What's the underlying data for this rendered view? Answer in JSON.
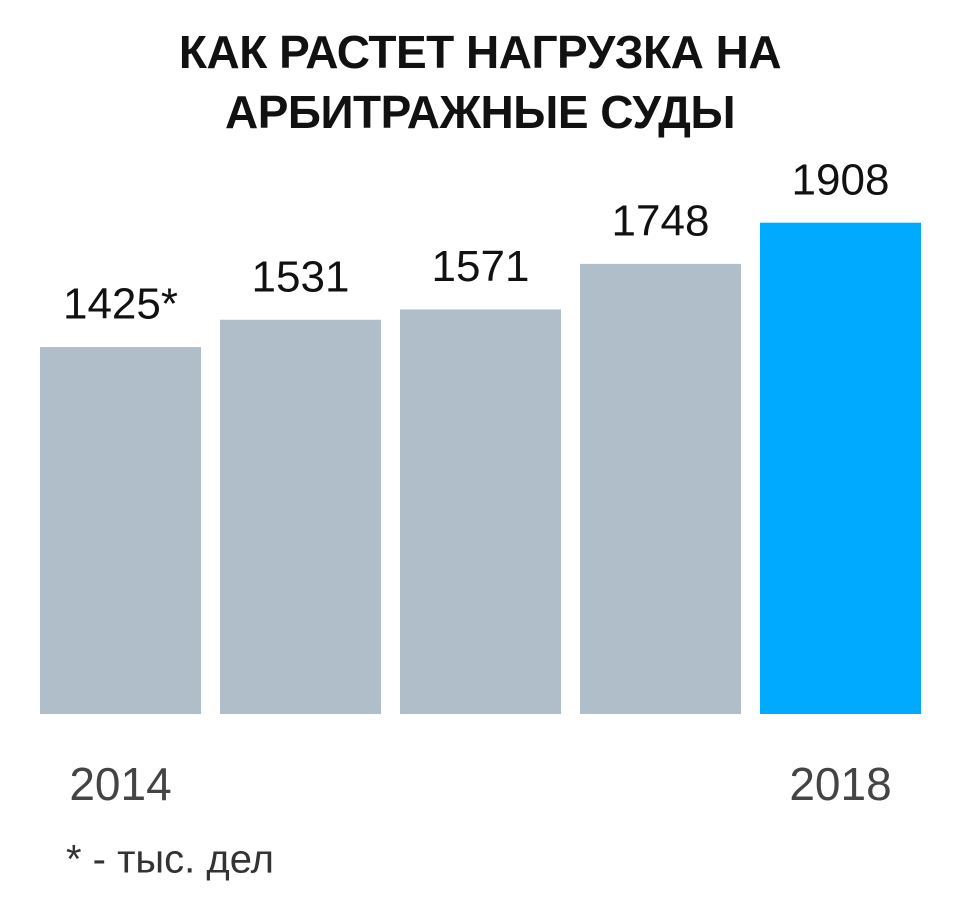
{
  "chart_data": {
    "type": "bar",
    "title": "КАК РАСТЕТ НАГРУЗКА НА АРБИТРАЖНЫЕ СУДЫ",
    "categories": [
      "2014",
      null,
      null,
      null,
      "2018"
    ],
    "values": [
      1425,
      1531,
      1571,
      1748,
      1908
    ],
    "value_labels": [
      "1425*",
      "1531",
      "1571",
      "1748",
      "1908"
    ],
    "colors": [
      "#b0bec9",
      "#b0bec9",
      "#b0bec9",
      "#b0bec9",
      "#00aaff"
    ],
    "ylim": [
      0,
      2000
    ],
    "footnote": "* - тыс. дел"
  }
}
